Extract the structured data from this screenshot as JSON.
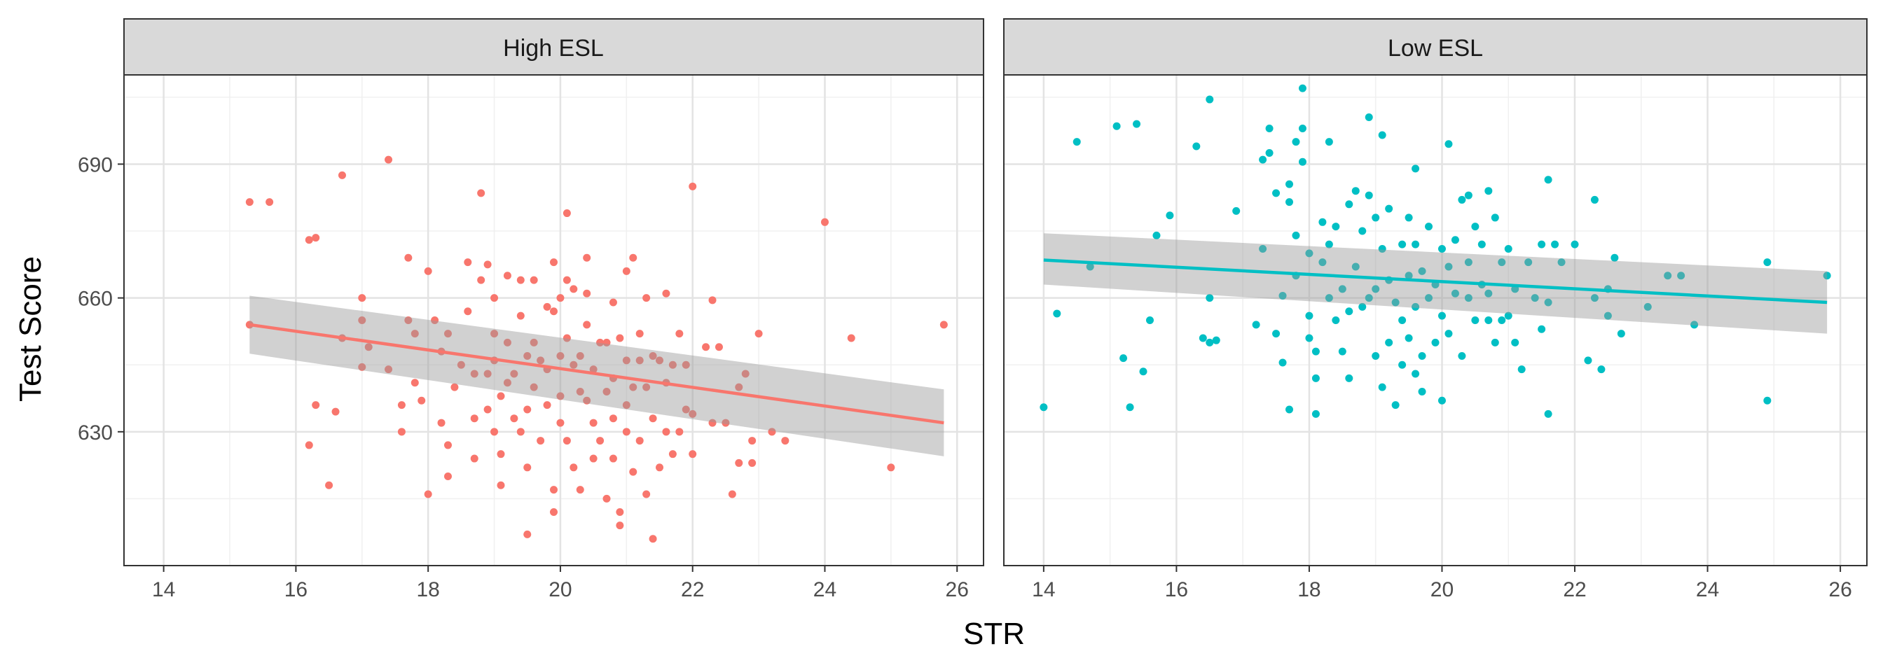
{
  "chart_data": {
    "type": "scatter",
    "layout": "facet",
    "xlabel": "STR",
    "ylabel": "Test Score",
    "xlim": [
      13.4,
      26.4
    ],
    "ylim": [
      600,
      710
    ],
    "x_ticks": [
      14,
      16,
      18,
      20,
      22,
      24,
      26
    ],
    "y_ticks": [
      630,
      660,
      690
    ],
    "grid": true,
    "facets": [
      {
        "label": "High ESL",
        "color": "#F8766D",
        "fit": {
          "x": [
            15.3,
            25.8
          ],
          "y": [
            654,
            632
          ],
          "ci_low": [
            647.5,
            624.5
          ],
          "ci_high": [
            660.5,
            639.5
          ]
        },
        "points": [
          [
            15.3,
            681.5
          ],
          [
            15.6,
            681.5
          ],
          [
            15.3,
            654
          ],
          [
            16.2,
            673
          ],
          [
            16.3,
            673.5
          ],
          [
            16.7,
            687.5
          ],
          [
            16.3,
            636
          ],
          [
            16.2,
            627
          ],
          [
            16.5,
            618
          ],
          [
            16.7,
            651
          ],
          [
            16.6,
            634.5
          ],
          [
            17.0,
            655
          ],
          [
            17.0,
            660
          ],
          [
            17.1,
            649
          ],
          [
            17.0,
            644.5
          ],
          [
            17.4,
            644
          ],
          [
            17.4,
            691
          ],
          [
            17.6,
            630
          ],
          [
            17.7,
            655
          ],
          [
            17.7,
            669
          ],
          [
            17.8,
            652
          ],
          [
            17.8,
            641
          ],
          [
            17.6,
            636
          ],
          [
            17.9,
            637
          ],
          [
            18.0,
            666
          ],
          [
            18.0,
            616
          ],
          [
            18.1,
            655
          ],
          [
            18.2,
            632
          ],
          [
            18.2,
            648
          ],
          [
            18.3,
            652
          ],
          [
            18.3,
            627
          ],
          [
            18.3,
            620
          ],
          [
            18.4,
            640
          ],
          [
            18.5,
            645
          ],
          [
            18.6,
            668
          ],
          [
            18.6,
            657
          ],
          [
            18.7,
            643
          ],
          [
            18.7,
            633
          ],
          [
            18.7,
            624
          ],
          [
            18.8,
            664
          ],
          [
            18.8,
            683.5
          ],
          [
            18.9,
            667.5
          ],
          [
            18.9,
            643
          ],
          [
            18.9,
            635
          ],
          [
            19.0,
            660
          ],
          [
            19.0,
            652
          ],
          [
            19.0,
            646
          ],
          [
            19.0,
            630
          ],
          [
            19.1,
            638
          ],
          [
            19.1,
            625
          ],
          [
            19.1,
            618
          ],
          [
            19.2,
            665
          ],
          [
            19.2,
            650
          ],
          [
            19.2,
            641
          ],
          [
            19.3,
            643
          ],
          [
            19.3,
            633
          ],
          [
            19.4,
            664
          ],
          [
            19.4,
            656
          ],
          [
            19.4,
            630
          ],
          [
            19.5,
            647
          ],
          [
            19.5,
            635
          ],
          [
            19.5,
            622
          ],
          [
            19.5,
            607
          ],
          [
            19.6,
            664
          ],
          [
            19.6,
            650
          ],
          [
            19.6,
            640
          ],
          [
            19.7,
            646
          ],
          [
            19.7,
            628
          ],
          [
            19.8,
            658
          ],
          [
            19.8,
            644
          ],
          [
            19.8,
            636
          ],
          [
            19.9,
            668
          ],
          [
            19.9,
            657
          ],
          [
            19.9,
            617
          ],
          [
            19.9,
            612
          ],
          [
            20.0,
            660
          ],
          [
            20.0,
            647
          ],
          [
            20.0,
            638
          ],
          [
            20.0,
            632
          ],
          [
            20.1,
            679
          ],
          [
            20.1,
            664
          ],
          [
            20.1,
            651
          ],
          [
            20.1,
            628
          ],
          [
            20.2,
            662
          ],
          [
            20.2,
            645
          ],
          [
            20.2,
            622
          ],
          [
            20.3,
            647
          ],
          [
            20.3,
            639
          ],
          [
            20.3,
            617
          ],
          [
            20.4,
            669
          ],
          [
            20.4,
            661
          ],
          [
            20.4,
            654
          ],
          [
            20.4,
            637
          ],
          [
            20.5,
            644
          ],
          [
            20.5,
            632
          ],
          [
            20.5,
            624
          ],
          [
            20.6,
            650
          ],
          [
            20.6,
            628
          ],
          [
            20.7,
            650
          ],
          [
            20.7,
            639
          ],
          [
            20.7,
            615
          ],
          [
            20.8,
            659
          ],
          [
            20.8,
            642
          ],
          [
            20.8,
            633
          ],
          [
            20.8,
            624
          ],
          [
            20.9,
            651
          ],
          [
            20.9,
            612
          ],
          [
            20.9,
            609
          ],
          [
            21.0,
            666
          ],
          [
            21.0,
            646
          ],
          [
            21.0,
            636
          ],
          [
            21.0,
            630
          ],
          [
            21.1,
            669
          ],
          [
            21.1,
            640
          ],
          [
            21.1,
            621
          ],
          [
            21.2,
            652
          ],
          [
            21.2,
            646
          ],
          [
            21.2,
            628
          ],
          [
            21.3,
            660
          ],
          [
            21.3,
            640
          ],
          [
            21.3,
            616
          ],
          [
            21.4,
            647
          ],
          [
            21.4,
            633
          ],
          [
            21.4,
            606
          ],
          [
            21.5,
            646
          ],
          [
            21.5,
            622
          ],
          [
            21.6,
            661
          ],
          [
            21.6,
            641
          ],
          [
            21.6,
            630
          ],
          [
            21.7,
            645
          ],
          [
            21.7,
            625
          ],
          [
            21.8,
            652
          ],
          [
            21.8,
            630
          ],
          [
            21.9,
            645
          ],
          [
            21.9,
            635
          ],
          [
            22.0,
            685
          ],
          [
            22.0,
            634
          ],
          [
            22.0,
            625
          ],
          [
            22.2,
            649
          ],
          [
            22.3,
            659.5
          ],
          [
            22.3,
            632
          ],
          [
            22.4,
            649
          ],
          [
            22.5,
            632
          ],
          [
            22.6,
            616
          ],
          [
            22.7,
            640
          ],
          [
            22.7,
            623
          ],
          [
            22.8,
            643
          ],
          [
            22.9,
            623
          ],
          [
            22.9,
            628
          ],
          [
            23.0,
            652
          ],
          [
            23.2,
            630
          ],
          [
            23.4,
            628
          ],
          [
            24.0,
            677
          ],
          [
            24.4,
            651
          ],
          [
            25.0,
            622
          ],
          [
            25.8,
            654
          ]
        ]
      },
      {
        "label": "Low ESL",
        "color": "#00BFC4",
        "fit": {
          "x": [
            14.0,
            25.8
          ],
          "y": [
            668.5,
            659
          ],
          "ci_low": [
            663,
            652
          ],
          "ci_high": [
            674.5,
            666
          ]
        },
        "points": [
          [
            14.0,
            635.5
          ],
          [
            14.2,
            656.5
          ],
          [
            14.5,
            695
          ],
          [
            14.7,
            667
          ],
          [
            15.1,
            698.5
          ],
          [
            15.2,
            646.5
          ],
          [
            15.3,
            635.5
          ],
          [
            15.4,
            699
          ],
          [
            15.5,
            643.5
          ],
          [
            15.6,
            655
          ],
          [
            15.7,
            674
          ],
          [
            15.9,
            678.5
          ],
          [
            16.3,
            694
          ],
          [
            16.4,
            651
          ],
          [
            16.5,
            704.5
          ],
          [
            16.5,
            660
          ],
          [
            16.5,
            650
          ],
          [
            16.6,
            650.5
          ],
          [
            16.9,
            679.5
          ],
          [
            17.2,
            654
          ],
          [
            17.3,
            671
          ],
          [
            17.3,
            691
          ],
          [
            17.4,
            692.5
          ],
          [
            17.4,
            698
          ],
          [
            17.5,
            683.5
          ],
          [
            17.5,
            652
          ],
          [
            17.6,
            645.5
          ],
          [
            17.6,
            660.5
          ],
          [
            17.7,
            685.5
          ],
          [
            17.7,
            681.5
          ],
          [
            17.7,
            635
          ],
          [
            17.8,
            695
          ],
          [
            17.8,
            674
          ],
          [
            17.8,
            665
          ],
          [
            17.9,
            707
          ],
          [
            17.9,
            698
          ],
          [
            17.9,
            690.5
          ],
          [
            18.0,
            670
          ],
          [
            18.0,
            656
          ],
          [
            18.0,
            651
          ],
          [
            18.1,
            648
          ],
          [
            18.1,
            642
          ],
          [
            18.1,
            634
          ],
          [
            18.2,
            677
          ],
          [
            18.2,
            668
          ],
          [
            18.3,
            695
          ],
          [
            18.3,
            672
          ],
          [
            18.3,
            660
          ],
          [
            18.4,
            676
          ],
          [
            18.4,
            655
          ],
          [
            18.5,
            662
          ],
          [
            18.5,
            648
          ],
          [
            18.6,
            681
          ],
          [
            18.6,
            657
          ],
          [
            18.6,
            642
          ],
          [
            18.7,
            684
          ],
          [
            18.7,
            667
          ],
          [
            18.8,
            658
          ],
          [
            18.8,
            675
          ],
          [
            18.9,
            700.5
          ],
          [
            18.9,
            683
          ],
          [
            18.9,
            660
          ],
          [
            19.0,
            678
          ],
          [
            19.0,
            662
          ],
          [
            19.0,
            647
          ],
          [
            19.1,
            696.5
          ],
          [
            19.1,
            671
          ],
          [
            19.1,
            640
          ],
          [
            19.2,
            680
          ],
          [
            19.2,
            664
          ],
          [
            19.2,
            650
          ],
          [
            19.3,
            659
          ],
          [
            19.3,
            636
          ],
          [
            19.4,
            672
          ],
          [
            19.4,
            655
          ],
          [
            19.4,
            645
          ],
          [
            19.5,
            678
          ],
          [
            19.5,
            665
          ],
          [
            19.5,
            651
          ],
          [
            19.6,
            689
          ],
          [
            19.6,
            672
          ],
          [
            19.6,
            658
          ],
          [
            19.6,
            643
          ],
          [
            19.7,
            666
          ],
          [
            19.7,
            647
          ],
          [
            19.7,
            639
          ],
          [
            19.8,
            676
          ],
          [
            19.8,
            660
          ],
          [
            19.9,
            650
          ],
          [
            19.9,
            663
          ],
          [
            20.0,
            671
          ],
          [
            20.0,
            656
          ],
          [
            20.0,
            637
          ],
          [
            20.1,
            694.5
          ],
          [
            20.1,
            667
          ],
          [
            20.1,
            652
          ],
          [
            20.2,
            673
          ],
          [
            20.2,
            661
          ],
          [
            20.3,
            682
          ],
          [
            20.3,
            647
          ],
          [
            20.4,
            683
          ],
          [
            20.4,
            668
          ],
          [
            20.4,
            660
          ],
          [
            20.5,
            676
          ],
          [
            20.5,
            655
          ],
          [
            20.6,
            672
          ],
          [
            20.6,
            663
          ],
          [
            20.7,
            684
          ],
          [
            20.7,
            661
          ],
          [
            20.7,
            655
          ],
          [
            20.8,
            678
          ],
          [
            20.8,
            650
          ],
          [
            20.9,
            668
          ],
          [
            20.9,
            655
          ],
          [
            21.0,
            671
          ],
          [
            21.0,
            656
          ],
          [
            21.1,
            650
          ],
          [
            21.1,
            662
          ],
          [
            21.2,
            644
          ],
          [
            21.3,
            668
          ],
          [
            21.4,
            660
          ],
          [
            21.5,
            672
          ],
          [
            21.5,
            653
          ],
          [
            21.6,
            686.5
          ],
          [
            21.6,
            659
          ],
          [
            21.6,
            634
          ],
          [
            21.7,
            672
          ],
          [
            21.8,
            668
          ],
          [
            22.0,
            672
          ],
          [
            22.2,
            646
          ],
          [
            22.3,
            682
          ],
          [
            22.3,
            660
          ],
          [
            22.4,
            644
          ],
          [
            22.5,
            662
          ],
          [
            22.5,
            656
          ],
          [
            22.6,
            669
          ],
          [
            22.7,
            652
          ],
          [
            23.1,
            658
          ],
          [
            23.4,
            665
          ],
          [
            23.6,
            665
          ],
          [
            23.8,
            654
          ],
          [
            24.9,
            668
          ],
          [
            24.9,
            637
          ],
          [
            25.8,
            665
          ]
        ]
      }
    ]
  }
}
